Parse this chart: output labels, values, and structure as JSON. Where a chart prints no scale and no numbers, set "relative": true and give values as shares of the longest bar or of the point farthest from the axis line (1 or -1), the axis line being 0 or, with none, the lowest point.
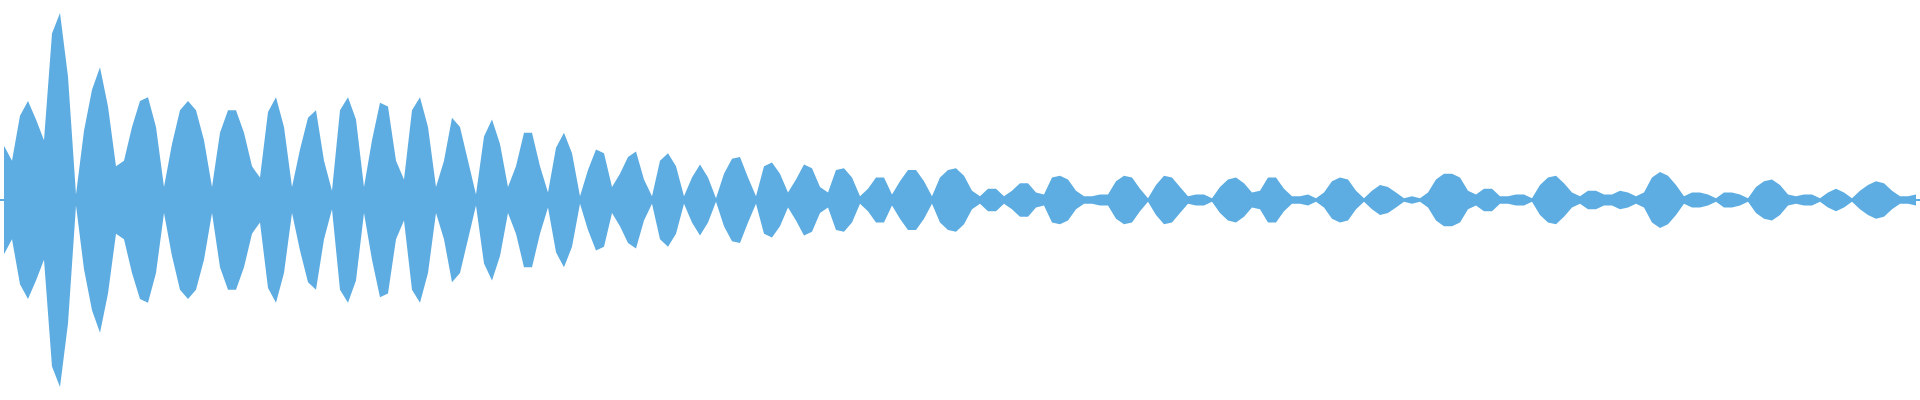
{
  "chart_data": {
    "type": "area",
    "relative": true,
    "categories": [
      null,
      null,
      null,
      null,
      null,
      null,
      null,
      null,
      null,
      null,
      null,
      null,
      null,
      null,
      null,
      null,
      null,
      null,
      null,
      null,
      null,
      null,
      null,
      null,
      null,
      null,
      null,
      null,
      null,
      null,
      null,
      null,
      null,
      null,
      null,
      null,
      null,
      null,
      null,
      null,
      null,
      null,
      null,
      null,
      null,
      null,
      null,
      null,
      null,
      null,
      null,
      null,
      null,
      null,
      null,
      null,
      null,
      null,
      null,
      null,
      null,
      null,
      null,
      null,
      null,
      null,
      null,
      null,
      null,
      null,
      null,
      null,
      null,
      null,
      null,
      null,
      null,
      null,
      null,
      null,
      null,
      null,
      null,
      null,
      null,
      null,
      null,
      null,
      null,
      null,
      null,
      null,
      null,
      null,
      null,
      null,
      null,
      null,
      null,
      null,
      null,
      null,
      null,
      null,
      null,
      null,
      null,
      null,
      null,
      null,
      null,
      null,
      null,
      null,
      null,
      null,
      null,
      null,
      null,
      null,
      null,
      null,
      null,
      null,
      null,
      null,
      null,
      null,
      null,
      null,
      null,
      null,
      null,
      null,
      null,
      null,
      null,
      null,
      null,
      null,
      null,
      null,
      null,
      null,
      null,
      null,
      null,
      null,
      null,
      null,
      null,
      null,
      null,
      null,
      null,
      null,
      null,
      null,
      null,
      null,
      null,
      null,
      null,
      null,
      null,
      null,
      null,
      null,
      null,
      null,
      null,
      null,
      null,
      null,
      null,
      null,
      null,
      null,
      null,
      null,
      null,
      null,
      null,
      null,
      null,
      null,
      null,
      null,
      null,
      null,
      null,
      null,
      null,
      null,
      null,
      null,
      null,
      null,
      null,
      null,
      null,
      null,
      null,
      null,
      null,
      null,
      null,
      null,
      null,
      null,
      null,
      null,
      null,
      null,
      null,
      null,
      null,
      null,
      null,
      null,
      null,
      null,
      null,
      null,
      null,
      null,
      null,
      null,
      null,
      null,
      null,
      null,
      null,
      null,
      null,
      null,
      null,
      null,
      null,
      null
    ],
    "series": [
      {
        "color": "#5dade2",
        "values": [
          0.29,
          0.21,
          0.45,
          0.53,
          0.43,
          0.32,
          0.89,
          1,
          0.66,
          0.03,
          0.37,
          0.59,
          0.71,
          0.5,
          0.18,
          0.21,
          0.39,
          0.53,
          0.55,
          0.39,
          0.07,
          0.3,
          0.48,
          0.53,
          0.48,
          0.32,
          0.07,
          0.36,
          0.48,
          0.48,
          0.36,
          0.18,
          0.12,
          0.47,
          0.55,
          0.39,
          0.07,
          0.27,
          0.44,
          0.48,
          0.21,
          0.05,
          0.48,
          0.55,
          0.43,
          0.07,
          0.32,
          0.52,
          0.5,
          0.21,
          0.11,
          0.48,
          0.55,
          0.39,
          0.07,
          0.21,
          0.44,
          0.39,
          0.21,
          0.03,
          0.34,
          0.43,
          0.3,
          0.07,
          0.18,
          0.36,
          0.36,
          0.18,
          0.04,
          0.28,
          0.36,
          0.25,
          0.02,
          0.16,
          0.27,
          0.25,
          0.07,
          0.14,
          0.23,
          0.26,
          0.11,
          0.02,
          0.21,
          0.25,
          0.18,
          0.02,
          0.12,
          0.19,
          0.12,
          0.01,
          0.14,
          0.22,
          0.23,
          0.12,
          0.02,
          0.18,
          0.2,
          0.14,
          0.04,
          0.11,
          0.19,
          0.17,
          0.07,
          0.04,
          0.16,
          0.17,
          0.12,
          0.02,
          0.06,
          0.12,
          0.12,
          0.03,
          0.1,
          0.16,
          0.16,
          0.1,
          0.02,
          0.12,
          0.16,
          0.17,
          0.13,
          0.05,
          0.02,
          0.06,
          0.06,
          0.02,
          0.05,
          0.09,
          0.09,
          0.04,
          0.03,
          0.12,
          0.13,
          0.11,
          0.05,
          0.02,
          0.02,
          0.03,
          0.03,
          0.1,
          0.13,
          0.12,
          0.06,
          0.01,
          0.08,
          0.13,
          0.12,
          0.07,
          0.02,
          0.03,
          0.03,
          0.01,
          0.07,
          0.11,
          0.12,
          0.09,
          0.04,
          0.05,
          0.12,
          0.12,
          0.06,
          0.02,
          0.02,
          0.03,
          0.01,
          0.04,
          0.1,
          0.12,
          0.11,
          0.05,
          0.01,
          0.05,
          0.08,
          0.07,
          0.04,
          0.01,
          0.02,
          0.01,
          0.04,
          0.11,
          0.14,
          0.14,
          0.12,
          0.05,
          0.03,
          0.06,
          0.06,
          0.02,
          0.02,
          0.03,
          0.03,
          0.01,
          0.08,
          0.12,
          0.13,
          0.09,
          0.04,
          0.02,
          0.05,
          0.05,
          0.03,
          0.03,
          0.05,
          0.04,
          0.02,
          0.04,
          0.12,
          0.15,
          0.13,
          0.08,
          0.02,
          0.04,
          0.04,
          0.03,
          0.01,
          0.04,
          0.04,
          0.03,
          0.01,
          0.07,
          0.1,
          0.11,
          0.08,
          0.03,
          0.02,
          0.03,
          0.03,
          0.01,
          0.04,
          0.06,
          0.04,
          0.01,
          0.05,
          0.08,
          0.1,
          0.09,
          0.05,
          0.02,
          0.02,
          0.03
        ]
      },
      {
        "color": "#5dade3",
        "values": [
          -0.29,
          -0.21,
          -0.45,
          -0.53,
          -0.43,
          -0.32,
          -0.89,
          -1,
          -0.66,
          -0.03,
          -0.37,
          -0.59,
          -0.71,
          -0.5,
          -0.18,
          -0.21,
          -0.39,
          -0.53,
          -0.55,
          -0.39,
          -0.07,
          -0.3,
          -0.48,
          -0.53,
          -0.48,
          -0.32,
          -0.07,
          -0.36,
          -0.48,
          -0.48,
          -0.36,
          -0.18,
          -0.12,
          -0.47,
          -0.55,
          -0.39,
          -0.07,
          -0.27,
          -0.44,
          -0.48,
          -0.21,
          -0.05,
          -0.48,
          -0.55,
          -0.43,
          -0.07,
          -0.32,
          -0.52,
          -0.5,
          -0.21,
          -0.11,
          -0.48,
          -0.55,
          -0.39,
          -0.07,
          -0.21,
          -0.44,
          -0.39,
          -0.21,
          -0.03,
          -0.34,
          -0.43,
          -0.3,
          -0.07,
          -0.18,
          -0.36,
          -0.36,
          -0.18,
          -0.04,
          -0.28,
          -0.36,
          -0.25,
          -0.02,
          -0.16,
          -0.27,
          -0.25,
          -0.07,
          -0.14,
          -0.23,
          -0.26,
          -0.11,
          -0.02,
          -0.21,
          -0.25,
          -0.18,
          -0.02,
          -0.12,
          -0.19,
          -0.12,
          -0.01,
          -0.14,
          -0.22,
          -0.23,
          -0.12,
          -0.02,
          -0.18,
          -0.2,
          -0.14,
          -0.04,
          -0.11,
          -0.19,
          -0.17,
          -0.07,
          -0.04,
          -0.16,
          -0.17,
          -0.12,
          -0.02,
          -0.06,
          -0.12,
          -0.12,
          -0.03,
          -0.1,
          -0.16,
          -0.16,
          -0.1,
          -0.02,
          -0.12,
          -0.16,
          -0.17,
          -0.13,
          -0.05,
          -0.02,
          -0.06,
          -0.06,
          -0.02,
          -0.05,
          -0.09,
          -0.09,
          -0.04,
          -0.03,
          -0.12,
          -0.13,
          -0.11,
          -0.05,
          -0.02,
          -0.02,
          -0.03,
          -0.03,
          -0.1,
          -0.13,
          -0.12,
          -0.06,
          -0.01,
          -0.08,
          -0.13,
          -0.12,
          -0.07,
          -0.02,
          -0.03,
          -0.03,
          -0.01,
          -0.07,
          -0.11,
          -0.12,
          -0.09,
          -0.04,
          -0.05,
          -0.12,
          -0.12,
          -0.06,
          -0.02,
          -0.02,
          -0.03,
          -0.01,
          -0.04,
          -0.1,
          -0.12,
          -0.11,
          -0.05,
          -0.01,
          -0.05,
          -0.08,
          -0.07,
          -0.04,
          -0.01,
          -0.02,
          -0.01,
          -0.04,
          -0.11,
          -0.14,
          -0.14,
          -0.12,
          -0.05,
          -0.03,
          -0.06,
          -0.06,
          -0.02,
          -0.02,
          -0.03,
          -0.03,
          -0.01,
          -0.08,
          -0.12,
          -0.13,
          -0.09,
          -0.04,
          -0.02,
          -0.05,
          -0.05,
          -0.03,
          -0.03,
          -0.05,
          -0.04,
          -0.02,
          -0.04,
          -0.12,
          -0.15,
          -0.13,
          -0.08,
          -0.02,
          -0.04,
          -0.04,
          -0.03,
          -0.01,
          -0.04,
          -0.04,
          -0.03,
          -0.01,
          -0.07,
          -0.1,
          -0.11,
          -0.08,
          -0.03,
          -0.02,
          -0.03,
          -0.03,
          -0.01,
          -0.04,
          -0.06,
          -0.04,
          -0.01,
          -0.05,
          -0.08,
          -0.1,
          -0.09,
          -0.05,
          -0.02,
          -0.02,
          -0.03
        ]
      }
    ],
    "ref_lines": [
      {
        "axis": "y",
        "value": 0,
        "color": "#5dade2"
      }
    ]
  }
}
